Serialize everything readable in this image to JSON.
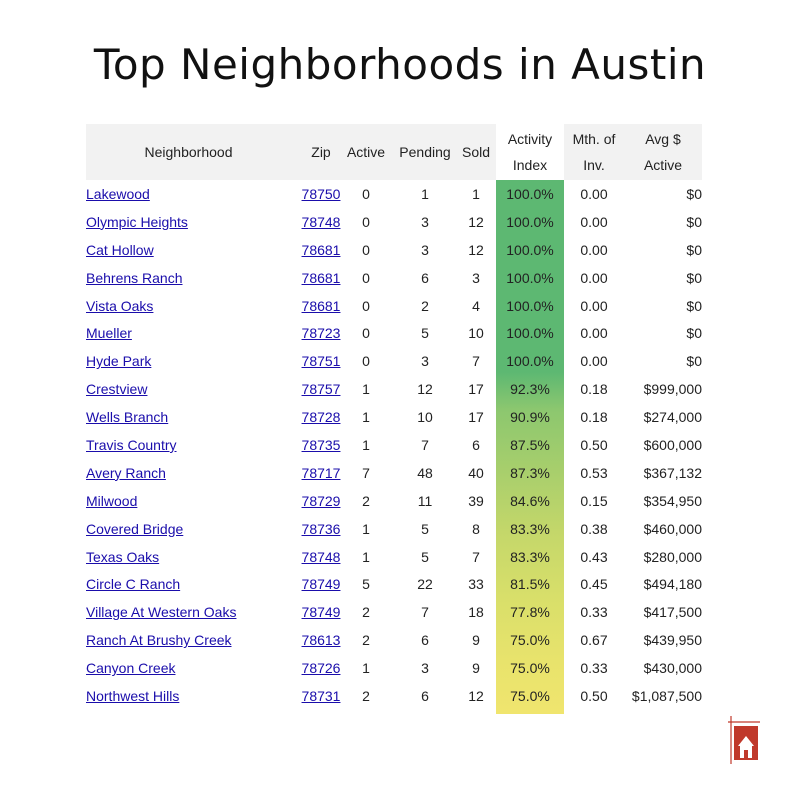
{
  "title": "Top Neighborhoods in Austin",
  "headers": {
    "neighborhood": "Neighborhood",
    "zip": "Zip",
    "active": "Active",
    "pending": "Pending",
    "sold": "Sold",
    "activity_index_1": "Activity",
    "activity_index_2": "Index",
    "months_inv_1": "Mth. of",
    "months_inv_2": "Inv.",
    "avg_active_1": "Avg $",
    "avg_active_2": "Active"
  },
  "rows": [
    {
      "name": "Lakewood",
      "zip": "78750",
      "active": "0",
      "pending": "1",
      "sold": "1",
      "index": "100.0%",
      "moi": "0.00",
      "avg": "$0"
    },
    {
      "name": "Olympic Heights",
      "zip": "78748",
      "active": "0",
      "pending": "3",
      "sold": "12",
      "index": "100.0%",
      "moi": "0.00",
      "avg": "$0"
    },
    {
      "name": "Cat Hollow",
      "zip": "78681",
      "active": "0",
      "pending": "3",
      "sold": "12",
      "index": "100.0%",
      "moi": "0.00",
      "avg": "$0"
    },
    {
      "name": "Behrens Ranch",
      "zip": "78681",
      "active": "0",
      "pending": "6",
      "sold": "3",
      "index": "100.0%",
      "moi": "0.00",
      "avg": "$0"
    },
    {
      "name": "Vista Oaks",
      "zip": "78681",
      "active": "0",
      "pending": "2",
      "sold": "4",
      "index": "100.0%",
      "moi": "0.00",
      "avg": "$0"
    },
    {
      "name": "Mueller",
      "zip": "78723",
      "active": "0",
      "pending": "5",
      "sold": "10",
      "index": "100.0%",
      "moi": "0.00",
      "avg": "$0"
    },
    {
      "name": "Hyde Park",
      "zip": "78751",
      "active": "0",
      "pending": "3",
      "sold": "7",
      "index": "100.0%",
      "moi": "0.00",
      "avg": "$0"
    },
    {
      "name": "Crestview",
      "zip": "78757",
      "active": "1",
      "pending": "12",
      "sold": "17",
      "index": "92.3%",
      "moi": "0.18",
      "avg": "$999,000"
    },
    {
      "name": "Wells Branch",
      "zip": "78728",
      "active": "1",
      "pending": "10",
      "sold": "17",
      "index": "90.9%",
      "moi": "0.18",
      "avg": "$274,000"
    },
    {
      "name": "Travis Country",
      "zip": "78735",
      "active": "1",
      "pending": "7",
      "sold": "6",
      "index": "87.5%",
      "moi": "0.50",
      "avg": "$600,000"
    },
    {
      "name": "Avery Ranch",
      "zip": "78717",
      "active": "7",
      "pending": "48",
      "sold": "40",
      "index": "87.3%",
      "moi": "0.53",
      "avg": "$367,132"
    },
    {
      "name": "Milwood",
      "zip": "78729",
      "active": "2",
      "pending": "11",
      "sold": "39",
      "index": "84.6%",
      "moi": "0.15",
      "avg": "$354,950"
    },
    {
      "name": "Covered Bridge",
      "zip": "78736",
      "active": "1",
      "pending": "5",
      "sold": "8",
      "index": "83.3%",
      "moi": "0.38",
      "avg": "$460,000"
    },
    {
      "name": "Texas Oaks",
      "zip": "78748",
      "active": "1",
      "pending": "5",
      "sold": "7",
      "index": "83.3%",
      "moi": "0.43",
      "avg": "$280,000"
    },
    {
      "name": "Circle C Ranch",
      "zip": "78749",
      "active": "5",
      "pending": "22",
      "sold": "33",
      "index": "81.5%",
      "moi": "0.45",
      "avg": "$494,180"
    },
    {
      "name": "Village At Western Oaks",
      "zip": "78749",
      "active": "2",
      "pending": "7",
      "sold": "18",
      "index": "77.8%",
      "moi": "0.33",
      "avg": "$417,500"
    },
    {
      "name": "Ranch At Brushy Creek",
      "zip": "78613",
      "active": "2",
      "pending": "6",
      "sold": "9",
      "index": "75.0%",
      "moi": "0.67",
      "avg": "$439,950"
    },
    {
      "name": "Canyon Creek",
      "zip": "78726",
      "active": "1",
      "pending": "3",
      "sold": "9",
      "index": "75.0%",
      "moi": "0.33",
      "avg": "$430,000"
    },
    {
      "name": "Northwest Hills",
      "zip": "78731",
      "active": "2",
      "pending": "6",
      "sold": "12",
      "index": "75.0%",
      "moi": "0.50",
      "avg": "$1,087,500"
    }
  ],
  "colors": {
    "link": "#1a0dab",
    "index_high": "#5db872",
    "index_low": "#f0e56e",
    "logo_red": "#c0392b"
  },
  "logo_icon": "house-logo-icon"
}
